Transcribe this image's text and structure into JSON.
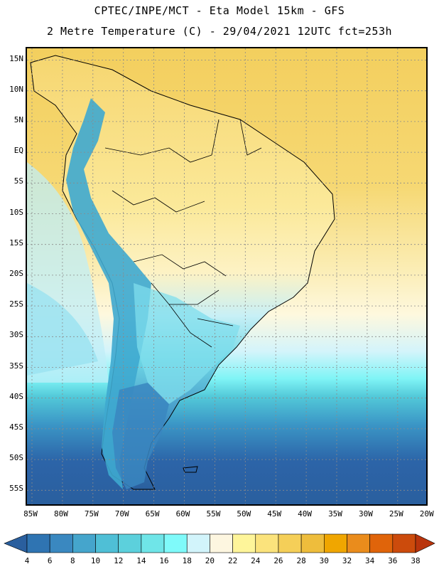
{
  "header": {
    "line1": "CPTEC/INPE/MCT -  Eta Model 15km - GFS",
    "line2": "2 Metre Temperature (C) - 29/04/2021 12UTC fct=253h"
  },
  "map": {
    "lat_labels": [
      "15N",
      "10N",
      "5N",
      "EQ",
      "5S",
      "10S",
      "15S",
      "20S",
      "25S",
      "30S",
      "35S",
      "40S",
      "45S",
      "50S",
      "55S"
    ],
    "lon_labels": [
      "85W",
      "80W",
      "75W",
      "70W",
      "65W",
      "60W",
      "55W",
      "50W",
      "45W",
      "40W",
      "35W",
      "30W",
      "25W",
      "20W"
    ],
    "colors": {
      "ocean_warm": "#f5d46a",
      "ocean_cool": "#fff4c0",
      "land_warm": "#f0c04a",
      "andes": "#3fb0d0",
      "southern_ocean": "#2c64a8",
      "grid": "#8a8a8a"
    }
  },
  "colorbar": {
    "values": [
      "4",
      "6",
      "8",
      "10",
      "12",
      "14",
      "16",
      "18",
      "20",
      "22",
      "24",
      "26",
      "28",
      "30",
      "32",
      "34",
      "36",
      "38"
    ],
    "colors": [
      "#2a5f9e",
      "#2f74b2",
      "#3a88c0",
      "#45a5cc",
      "#4fbfd6",
      "#5cd0dc",
      "#6fe5e8",
      "#7ffafa",
      "#d2f4fb",
      "#fdf6e0",
      "#fef59a",
      "#fbe37c",
      "#f5cf58",
      "#eebd3c",
      "#f0a600",
      "#ea8c1c",
      "#e0640a",
      "#cc4b0c",
      "#b9340c"
    ]
  }
}
